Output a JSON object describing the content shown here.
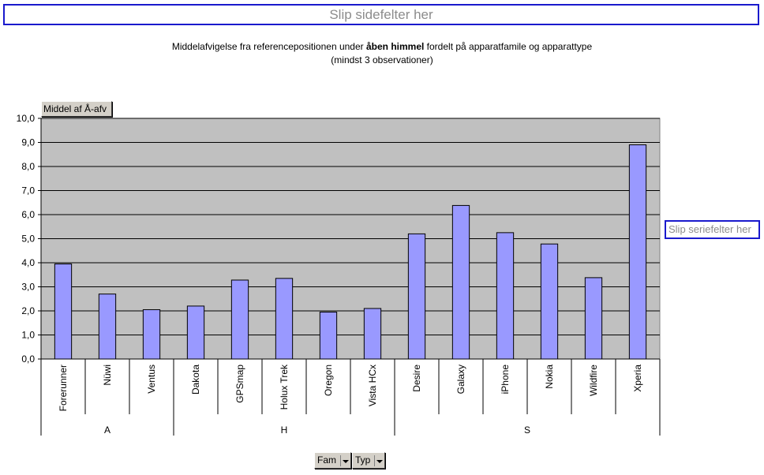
{
  "page_drop_label": "Slip sidefelter her",
  "series_drop_label": "Slip seriefelter her",
  "title": {
    "line1_pre": "Middelafvigelse fra referencepositionen under ",
    "line1_bold": "åben himmel",
    "line1_post": " fordelt på apparatfamile og apparattype",
    "line2": "(mindst 3 observationer)"
  },
  "data_field_label": "Middel af Å-afv",
  "row_fields": [
    {
      "label": "Fam"
    },
    {
      "label": "Typ"
    }
  ],
  "chart_data": {
    "type": "bar",
    "title": "Middelafvigelse fra referencepositionen under åben himmel fordelt på apparatfamile og apparattype (mindst 3 observationer)",
    "categories": [
      "Forerunner",
      "Nüwi",
      "Ventus",
      "Dakota",
      "GPSmap",
      "Holux Trek",
      "Oregon",
      "Vista HCx",
      "Desire",
      "Galaxy",
      "iPhone",
      "Nokia",
      "Wildfire",
      "Xperia"
    ],
    "groups": [
      {
        "name": "A",
        "count": 3
      },
      {
        "name": "H",
        "count": 5
      },
      {
        "name": "S",
        "count": 6
      }
    ],
    "series": [
      {
        "name": "Middel af Å-afv",
        "values": [
          3.95,
          2.7,
          2.05,
          2.2,
          3.28,
          3.35,
          1.95,
          2.1,
          5.2,
          6.38,
          5.25,
          4.78,
          3.38,
          8.9
        ]
      }
    ],
    "ylim": [
      0,
      10
    ],
    "yticks": [
      "0,0",
      "1,0",
      "2,0",
      "3,0",
      "4,0",
      "5,0",
      "6,0",
      "7,0",
      "8,0",
      "9,0",
      "10,0"
    ],
    "grid": true,
    "colors": {
      "bar": "#9999ff",
      "plot_bg": "#c0c0c0",
      "bar_stroke": "#000000"
    }
  }
}
